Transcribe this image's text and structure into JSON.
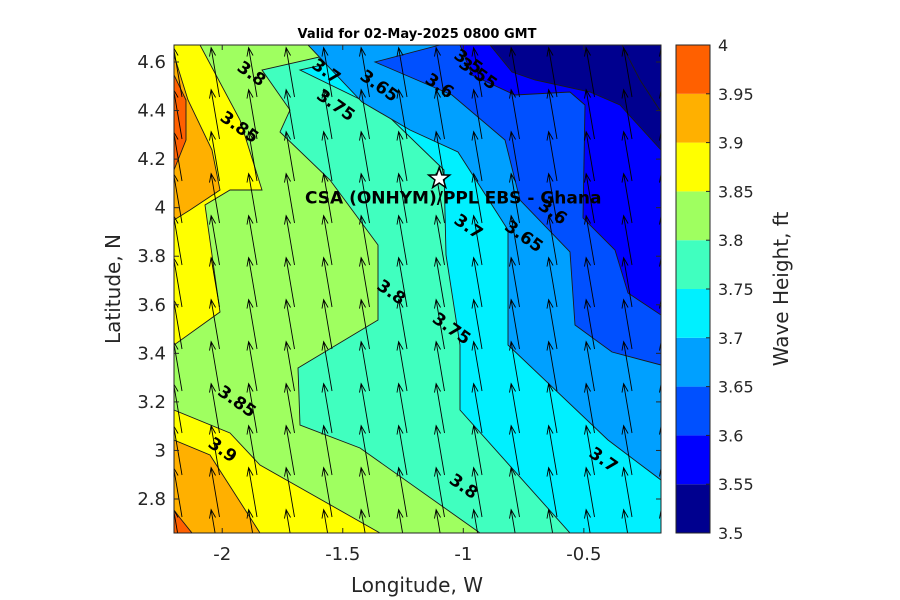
{
  "chart_data": {
    "type": "contour",
    "title": "Valid for 02-May-2025 0800 GMT",
    "xlabel": "Longitude, W",
    "ylabel": "Latitude, N",
    "xlim": [
      -2.2,
      -0.18
    ],
    "ylim": [
      2.66,
      4.67
    ],
    "xticks": [
      -2,
      -1.5,
      -1,
      -0.5
    ],
    "xtick_labels": [
      "-2",
      "-1.5",
      "-1",
      "-0.5"
    ],
    "yticks": [
      2.8,
      3,
      3.2,
      3.4,
      3.6,
      3.8,
      4,
      4.2,
      4.4,
      4.6
    ],
    "ytick_labels": [
      "2.8",
      "3",
      "3.2",
      "3.4",
      "3.6",
      "3.8",
      "4",
      "4.2",
      "4.4",
      "4.6"
    ],
    "colorbar": {
      "label": "Wave Height, ft",
      "range": [
        3.5,
        4
      ],
      "levels": [
        3.5,
        3.55,
        3.6,
        3.65,
        3.7,
        3.75,
        3.8,
        3.85,
        3.9,
        3.95,
        4
      ],
      "tick_labels": [
        "3.5",
        "3.55",
        "3.6",
        "3.65",
        "3.7",
        "3.75",
        "3.8",
        "3.85",
        "3.9",
        "3.95",
        "4"
      ],
      "colors": [
        "#00008F",
        "#0000FF",
        "#0050FF",
        "#00A0FF",
        "#00F0FF",
        "#40FFBF",
        "#9FFF60",
        "#FFFF00",
        "#FFB000",
        "#FF6000"
      ]
    },
    "contour_labels": [
      {
        "text": "3.5",
        "x": -0.98,
        "y": 4.6
      },
      {
        "text": "3.55",
        "x": -0.94,
        "y": 4.55
      },
      {
        "text": "3.6",
        "x": -1.1,
        "y": 4.5
      },
      {
        "text": "3.65",
        "x": -1.35,
        "y": 4.5
      },
      {
        "text": "3.7",
        "x": -1.57,
        "y": 4.56
      },
      {
        "text": "3.75",
        "x": -1.53,
        "y": 4.42
      },
      {
        "text": "3.8",
        "x": -1.88,
        "y": 4.55
      },
      {
        "text": "3.85",
        "x": -1.93,
        "y": 4.33
      },
      {
        "text": "3.6",
        "x": -0.63,
        "y": 3.98
      },
      {
        "text": "3.65",
        "x": -0.75,
        "y": 3.88
      },
      {
        "text": "3.7",
        "x": -0.98,
        "y": 3.92
      },
      {
        "text": "3.75",
        "x": -1.05,
        "y": 3.5
      },
      {
        "text": "3.8",
        "x": -1.3,
        "y": 3.65
      },
      {
        "text": "3.85",
        "x": -1.94,
        "y": 3.2
      },
      {
        "text": "3.9",
        "x": -2.0,
        "y": 3.0
      },
      {
        "text": "3.8",
        "x": -1.0,
        "y": 2.85
      },
      {
        "text": "3.7",
        "x": -0.42,
        "y": 2.96
      }
    ],
    "site": {
      "label": "CSA (ONHYM)/PPL EBS  - Ghana",
      "lon": -1.1,
      "lat": 4.12
    },
    "vector_field": {
      "description": "wave direction arrows pointing north-north-west",
      "u": -0.17,
      "v": 1
    }
  }
}
